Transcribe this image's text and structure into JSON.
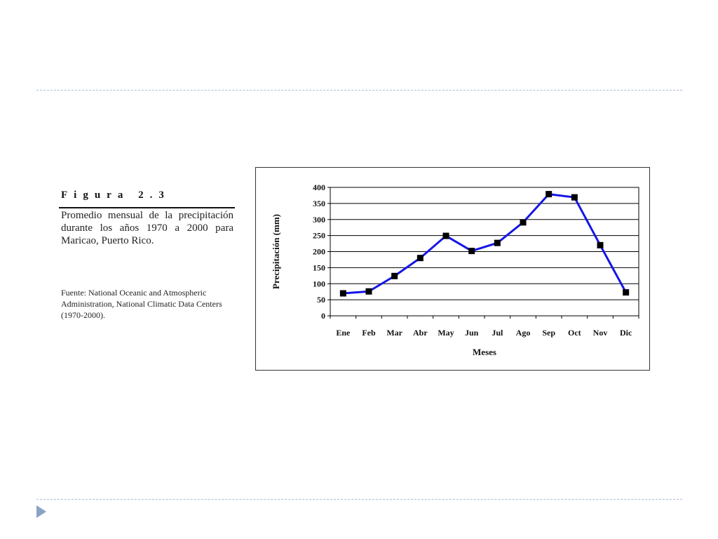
{
  "slide": {
    "colors": {
      "divider": "#a9bdd6",
      "nav_arrow": "#8aa2c4"
    },
    "nav_icon": "triangle-right-icon"
  },
  "caption": {
    "figure_label": "Figura 2.3",
    "text": "Promedio mensual de la precipitación durante los años 1970 a 2000 para Maricao, Puerto Rico.",
    "source": "Fuente: National Oceanic and Atmospheric Administration, National Climatic Data Centers (1970-2000)."
  },
  "chart_data": {
    "type": "line",
    "title": "",
    "xlabel": "Meses",
    "ylabel": "Precipitación (mm)",
    "categories": [
      "Ene",
      "Feb",
      "Mar",
      "Abr",
      "May",
      "Jun",
      "Jul",
      "Ago",
      "Sep",
      "Oct",
      "Nov",
      "Dic"
    ],
    "series": [
      {
        "values": [
          70,
          76,
          124,
          180,
          249,
          202,
          227,
          291,
          379,
          369,
          220,
          73
        ],
        "color": "#1515e6",
        "marker": "square",
        "marker_color": "#000000"
      }
    ],
    "ylim": [
      0,
      400
    ],
    "yticks": [
      0,
      50,
      100,
      150,
      200,
      250,
      300,
      350,
      400
    ],
    "grid": "horizontal",
    "legend": "none"
  }
}
